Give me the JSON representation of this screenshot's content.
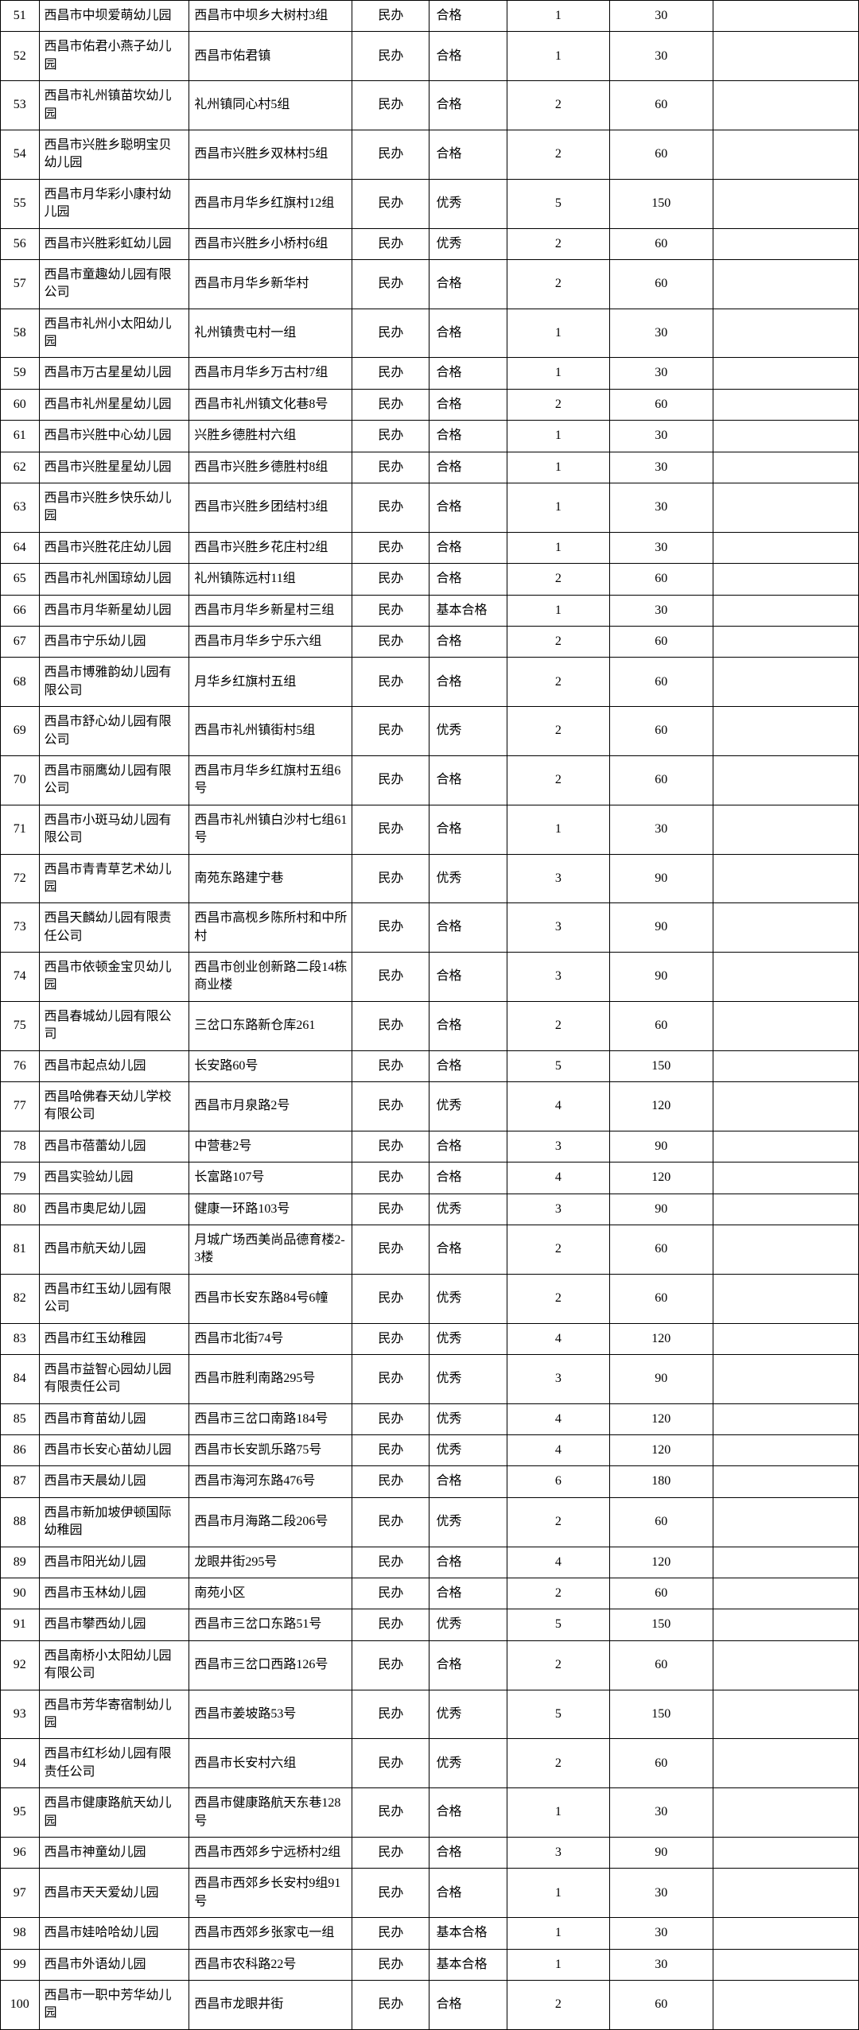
{
  "table": {
    "columns": [
      "num",
      "name",
      "addr",
      "type",
      "grade",
      "n1",
      "n2",
      "blank"
    ],
    "column_widths": [
      "4.5%",
      "17.5%",
      "19%",
      "9%",
      "9%",
      "12%",
      "12%",
      "17%"
    ],
    "border_color": "#000000",
    "font_family": "SimSun",
    "font_size": 16,
    "rows": [
      {
        "num": "51",
        "name": "西昌市中坝爱萌幼儿园",
        "addr": "西昌市中坝乡大树村3组",
        "type": "民办",
        "grade": "合格",
        "n1": "1",
        "n2": "30",
        "blank": ""
      },
      {
        "num": "52",
        "name": "西昌市佑君小燕子幼儿园",
        "addr": "西昌市佑君镇",
        "type": "民办",
        "grade": "合格",
        "n1": "1",
        "n2": "30",
        "blank": ""
      },
      {
        "num": "53",
        "name": "西昌市礼州镇苗坎幼儿园",
        "addr": "礼州镇同心村5组",
        "type": "民办",
        "grade": "合格",
        "n1": "2",
        "n2": "60",
        "blank": ""
      },
      {
        "num": "54",
        "name": "西昌市兴胜乡聪明宝贝幼儿园",
        "addr": "西昌市兴胜乡双林村5组",
        "type": "民办",
        "grade": "合格",
        "n1": "2",
        "n2": "60",
        "blank": ""
      },
      {
        "num": "55",
        "name": "西昌市月华彩小康村幼儿园",
        "addr": "西昌市月华乡红旗村12组",
        "type": "民办",
        "grade": "优秀",
        "n1": "5",
        "n2": "150",
        "blank": ""
      },
      {
        "num": "56",
        "name": "西昌市兴胜彩虹幼儿园",
        "addr": "西昌市兴胜乡小桥村6组",
        "type": "民办",
        "grade": "优秀",
        "n1": "2",
        "n2": "60",
        "blank": ""
      },
      {
        "num": "57",
        "name": "西昌市童趣幼儿园有限公司",
        "addr": "西昌市月华乡新华村",
        "type": "民办",
        "grade": "合格",
        "n1": "2",
        "n2": "60",
        "blank": ""
      },
      {
        "num": "58",
        "name": "西昌市礼州小太阳幼儿园",
        "addr": "礼州镇贵屯村一组",
        "type": "民办",
        "grade": "合格",
        "n1": "1",
        "n2": "30",
        "blank": ""
      },
      {
        "num": "59",
        "name": "西昌市万古星星幼儿园",
        "addr": "西昌市月华乡万古村7组",
        "type": "民办",
        "grade": "合格",
        "n1": "1",
        "n2": "30",
        "blank": ""
      },
      {
        "num": "60",
        "name": "西昌市礼州星星幼儿园",
        "addr": "西昌市礼州镇文化巷8号",
        "type": "民办",
        "grade": "合格",
        "n1": "2",
        "n2": "60",
        "blank": ""
      },
      {
        "num": "61",
        "name": "西昌市兴胜中心幼儿园",
        "addr": "兴胜乡德胜村六组",
        "type": "民办",
        "grade": "合格",
        "n1": "1",
        "n2": "30",
        "blank": ""
      },
      {
        "num": "62",
        "name": "西昌市兴胜星星幼儿园",
        "addr": "西昌市兴胜乡德胜村8组",
        "type": "民办",
        "grade": "合格",
        "n1": "1",
        "n2": "30",
        "blank": ""
      },
      {
        "num": "63",
        "name": "西昌市兴胜乡快乐幼儿园",
        "addr": "西昌市兴胜乡团结村3组",
        "type": "民办",
        "grade": "合格",
        "n1": "1",
        "n2": "30",
        "blank": ""
      },
      {
        "num": "64",
        "name": "西昌市兴胜花庄幼儿园",
        "addr": "西昌市兴胜乡花庄村2组",
        "type": "民办",
        "grade": "合格",
        "n1": "1",
        "n2": "30",
        "blank": ""
      },
      {
        "num": "65",
        "name": "西昌市礼州国琼幼儿园",
        "addr": "礼州镇陈远村11组",
        "type": "民办",
        "grade": "合格",
        "n1": "2",
        "n2": "60",
        "blank": ""
      },
      {
        "num": "66",
        "name": "西昌市月华新星幼儿园",
        "addr": "西昌市月华乡新星村三组",
        "type": "民办",
        "grade": "基本合格",
        "n1": "1",
        "n2": "30",
        "blank": ""
      },
      {
        "num": "67",
        "name": "西昌市宁乐幼儿园",
        "addr": "西昌市月华乡宁乐六组",
        "type": "民办",
        "grade": "合格",
        "n1": "2",
        "n2": "60",
        "blank": ""
      },
      {
        "num": "68",
        "name": "西昌市博雅韵幼儿园有限公司",
        "addr": "月华乡红旗村五组",
        "type": "民办",
        "grade": "合格",
        "n1": "2",
        "n2": "60",
        "blank": ""
      },
      {
        "num": "69",
        "name": "西昌市舒心幼儿园有限公司",
        "addr": "西昌市礼州镇街村5组",
        "type": "民办",
        "grade": "优秀",
        "n1": "2",
        "n2": "60",
        "blank": ""
      },
      {
        "num": "70",
        "name": "西昌市丽鹰幼儿园有限公司",
        "addr": "西昌市月华乡红旗村五组6号",
        "type": "民办",
        "grade": "合格",
        "n1": "2",
        "n2": "60",
        "blank": ""
      },
      {
        "num": "71",
        "name": "西昌市小斑马幼儿园有限公司",
        "addr": "西昌市礼州镇白沙村七组61号",
        "type": "民办",
        "grade": "合格",
        "n1": "1",
        "n2": "30",
        "blank": ""
      },
      {
        "num": "72",
        "name": "西昌市青青草艺术幼儿园",
        "addr": "南苑东路建宁巷",
        "type": "民办",
        "grade": "优秀",
        "n1": "3",
        "n2": "90",
        "blank": ""
      },
      {
        "num": "73",
        "name": "西昌天麟幼儿园有限责任公司",
        "addr": "西昌市高枧乡陈所村和中所村",
        "type": "民办",
        "grade": "合格",
        "n1": "3",
        "n2": "90",
        "blank": ""
      },
      {
        "num": "74",
        "name": "西昌市依顿金宝贝幼儿园",
        "addr": "西昌市创业创新路二段14栋商业楼",
        "type": "民办",
        "grade": "合格",
        "n1": "3",
        "n2": "90",
        "blank": ""
      },
      {
        "num": "75",
        "name": "西昌春城幼儿园有限公司",
        "addr": "三岔口东路新仓库261",
        "type": "民办",
        "grade": "合格",
        "n1": "2",
        "n2": "60",
        "blank": ""
      },
      {
        "num": "76",
        "name": "西昌市起点幼儿园",
        "addr": "长安路60号",
        "type": "民办",
        "grade": "合格",
        "n1": "5",
        "n2": "150",
        "blank": ""
      },
      {
        "num": "77",
        "name": "西昌哈佛春天幼儿学校有限公司",
        "addr": "西昌市月泉路2号",
        "type": "民办",
        "grade": "优秀",
        "n1": "4",
        "n2": "120",
        "blank": ""
      },
      {
        "num": "78",
        "name": "西昌市蓓蕾幼儿园",
        "addr": "中营巷2号",
        "type": "民办",
        "grade": "合格",
        "n1": "3",
        "n2": "90",
        "blank": ""
      },
      {
        "num": "79",
        "name": "西昌实验幼儿园",
        "addr": "长富路107号",
        "type": "民办",
        "grade": "合格",
        "n1": "4",
        "n2": "120",
        "blank": ""
      },
      {
        "num": "80",
        "name": "西昌市奥尼幼儿园",
        "addr": "健康一环路103号",
        "type": "民办",
        "grade": "优秀",
        "n1": "3",
        "n2": "90",
        "blank": ""
      },
      {
        "num": "81",
        "name": "西昌市航天幼儿园",
        "addr": "月城广场西美尚品德育楼2-3楼",
        "type": "民办",
        "grade": "合格",
        "n1": "2",
        "n2": "60",
        "blank": ""
      },
      {
        "num": "82",
        "name": "西昌市红玉幼儿园有限公司",
        "addr": "西昌市长安东路84号6幢",
        "type": "民办",
        "grade": "优秀",
        "n1": "2",
        "n2": "60",
        "blank": ""
      },
      {
        "num": "83",
        "name": "西昌市红玉幼稚园",
        "addr": "西昌市北街74号",
        "type": "民办",
        "grade": "优秀",
        "n1": "4",
        "n2": "120",
        "blank": ""
      },
      {
        "num": "84",
        "name": "西昌市益智心园幼儿园有限责任公司",
        "addr": "西昌市胜利南路295号",
        "type": "民办",
        "grade": "优秀",
        "n1": "3",
        "n2": "90",
        "blank": ""
      },
      {
        "num": "85",
        "name": "西昌市育苗幼儿园",
        "addr": "西昌市三岔口南路184号",
        "type": "民办",
        "grade": "优秀",
        "n1": "4",
        "n2": "120",
        "blank": ""
      },
      {
        "num": "86",
        "name": "西昌市长安心苗幼儿园",
        "addr": "西昌市长安凯乐路75号",
        "type": "民办",
        "grade": "优秀",
        "n1": "4",
        "n2": "120",
        "blank": ""
      },
      {
        "num": "87",
        "name": "西昌市天晨幼儿园",
        "addr": "西昌市海河东路476号",
        "type": "民办",
        "grade": "合格",
        "n1": "6",
        "n2": "180",
        "blank": ""
      },
      {
        "num": "88",
        "name": "西昌市新加坡伊顿国际幼稚园",
        "addr": "西昌市月海路二段206号",
        "type": "民办",
        "grade": "优秀",
        "n1": "2",
        "n2": "60",
        "blank": ""
      },
      {
        "num": "89",
        "name": "西昌市阳光幼儿园",
        "addr": "龙眼井街295号",
        "type": "民办",
        "grade": "合格",
        "n1": "4",
        "n2": "120",
        "blank": ""
      },
      {
        "num": "90",
        "name": "西昌市玉林幼儿园",
        "addr": "南苑小区",
        "type": "民办",
        "grade": "合格",
        "n1": "2",
        "n2": "60",
        "blank": ""
      },
      {
        "num": "91",
        "name": "西昌市攀西幼儿园",
        "addr": "西昌市三岔口东路51号",
        "type": "民办",
        "grade": "优秀",
        "n1": "5",
        "n2": "150",
        "blank": ""
      },
      {
        "num": "92",
        "name": "西昌南桥小太阳幼儿园有限公司",
        "addr": "西昌市三岔口西路126号",
        "type": "民办",
        "grade": "合格",
        "n1": "2",
        "n2": "60",
        "blank": ""
      },
      {
        "num": "93",
        "name": "西昌市芳华寄宿制幼儿园",
        "addr": "西昌市姜坡路53号",
        "type": "民办",
        "grade": "优秀",
        "n1": "5",
        "n2": "150",
        "blank": ""
      },
      {
        "num": "94",
        "name": "西昌市红杉幼儿园有限责任公司",
        "addr": "西昌市长安村六组",
        "type": "民办",
        "grade": "优秀",
        "n1": "2",
        "n2": "60",
        "blank": ""
      },
      {
        "num": "95",
        "name": "西昌市健康路航天幼儿园",
        "addr": "西昌市健康路航天东巷128号",
        "type": "民办",
        "grade": "合格",
        "n1": "1",
        "n2": "30",
        "blank": ""
      },
      {
        "num": "96",
        "name": "西昌市神童幼儿园",
        "addr": "西昌市西郊乡宁远桥村2组",
        "type": "民办",
        "grade": "合格",
        "n1": "3",
        "n2": "90",
        "blank": ""
      },
      {
        "num": "97",
        "name": "西昌市天天爱幼儿园",
        "addr": "西昌市西郊乡长安村9组91号",
        "type": "民办",
        "grade": "合格",
        "n1": "1",
        "n2": "30",
        "blank": ""
      },
      {
        "num": "98",
        "name": "西昌市娃哈哈幼儿园",
        "addr": "西昌市西郊乡张家屯一组",
        "type": "民办",
        "grade": "基本合格",
        "n1": "1",
        "n2": "30",
        "blank": ""
      },
      {
        "num": "99",
        "name": "西昌市外语幼儿园",
        "addr": "西昌市农科路22号",
        "type": "民办",
        "grade": "基本合格",
        "n1": "1",
        "n2": "30",
        "blank": ""
      },
      {
        "num": "100",
        "name": "西昌市一职中芳华幼儿园",
        "addr": "西昌市龙眼井街",
        "type": "民办",
        "grade": "合格",
        "n1": "2",
        "n2": "60",
        "blank": ""
      }
    ]
  }
}
